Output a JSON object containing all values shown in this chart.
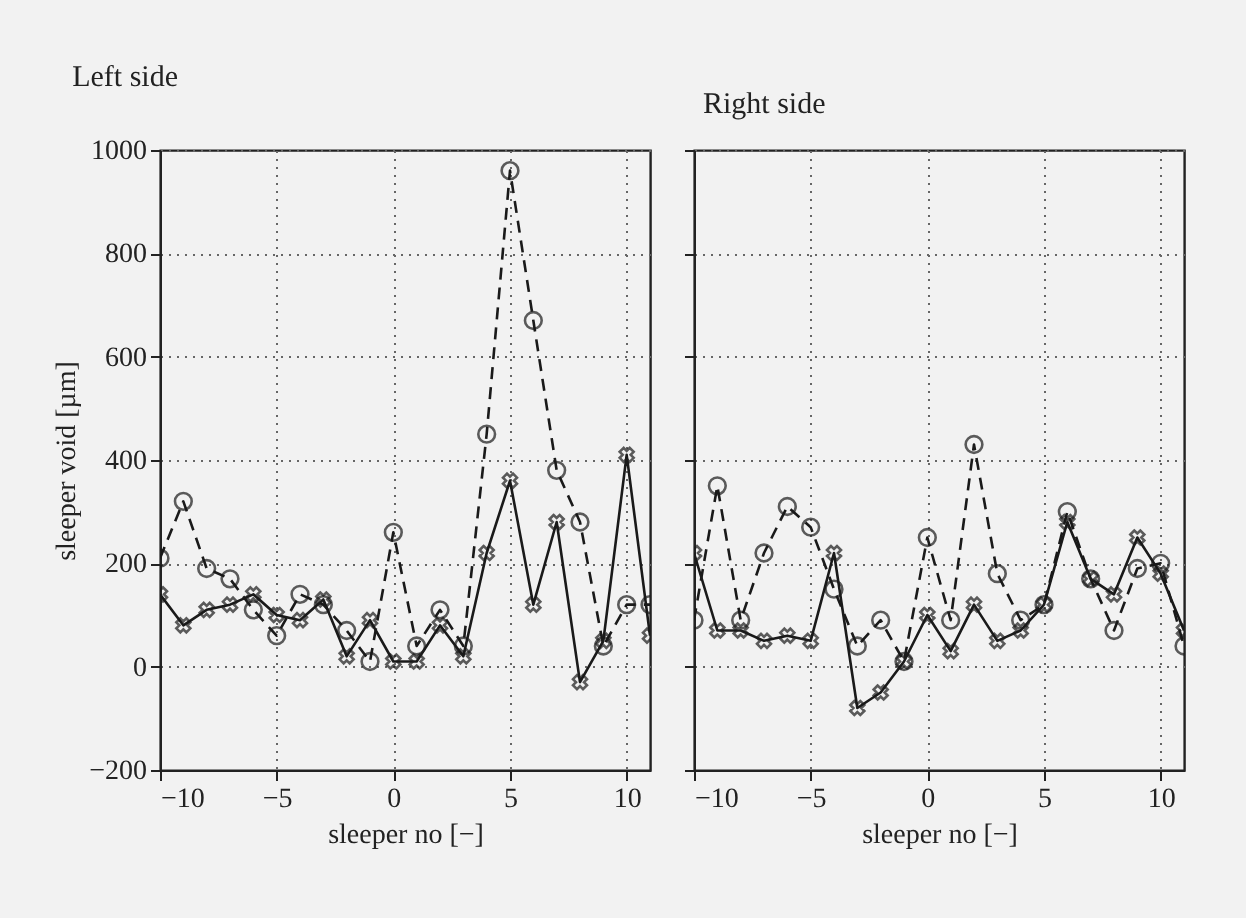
{
  "chart_data": [
    {
      "type": "line",
      "title": "Left side",
      "xlabel": "sleeper no [−]",
      "ylabel": "sleeper void [µm]",
      "x": [
        -10,
        -9,
        -8,
        -7,
        -6,
        -5,
        -4,
        -3,
        -2,
        -1,
        0,
        1,
        2,
        3,
        4,
        5,
        6,
        7,
        8,
        9,
        10,
        11
      ],
      "xlim": [
        -10,
        11
      ],
      "xticks": [
        -10,
        -5,
        0,
        5,
        10
      ],
      "ylim": [
        -200,
        1000
      ],
      "yticks": [
        -200,
        0,
        200,
        400,
        600,
        800,
        1000
      ],
      "grid": true,
      "series": [
        {
          "color": "#1a1a1a",
          "marker": "circle",
          "line_style": "dashed",
          "values": [
            210,
            320,
            190,
            170,
            110,
            60,
            140,
            120,
            70,
            10,
            260,
            40,
            110,
            40,
            450,
            960,
            670,
            380,
            280,
            40,
            120,
            120
          ]
        },
        {
          "color": "#1a1a1a",
          "marker": "cross",
          "line_style": "solid",
          "values": [
            140,
            80,
            110,
            120,
            140,
            100,
            90,
            130,
            20,
            90,
            10,
            10,
            80,
            20,
            220,
            360,
            120,
            280,
            -30,
            50,
            410,
            60
          ]
        }
      ]
    },
    {
      "type": "line",
      "title": "Right side",
      "xlabel": "sleeper no [−]",
      "x": [
        -10,
        -9,
        -8,
        -7,
        -6,
        -5,
        -4,
        -3,
        -2,
        -1,
        0,
        1,
        2,
        3,
        4,
        5,
        6,
        7,
        8,
        9,
        10,
        11
      ],
      "xlim": [
        -10,
        11
      ],
      "xticks": [
        -10,
        -5,
        0,
        5,
        10
      ],
      "ylim": [
        -200,
        1000
      ],
      "yticks": [
        -200,
        0,
        200,
        400,
        600,
        800,
        1000
      ],
      "grid": true,
      "tick_labels": "x",
      "series": [
        {
          "color": "#1a1a1a",
          "marker": "circle",
          "line_style": "dashed",
          "values": [
            90,
            350,
            90,
            220,
            310,
            270,
            150,
            40,
            90,
            10,
            250,
            90,
            430,
            180,
            90,
            120,
            300,
            170,
            70,
            190,
            200,
            40
          ]
        },
        {
          "color": "#1a1a1a",
          "marker": "cross",
          "line_style": "solid",
          "values": [
            220,
            70,
            70,
            50,
            60,
            50,
            220,
            -80,
            -50,
            10,
            100,
            30,
            120,
            50,
            70,
            120,
            280,
            170,
            140,
            250,
            180,
            70
          ]
        }
      ]
    }
  ]
}
